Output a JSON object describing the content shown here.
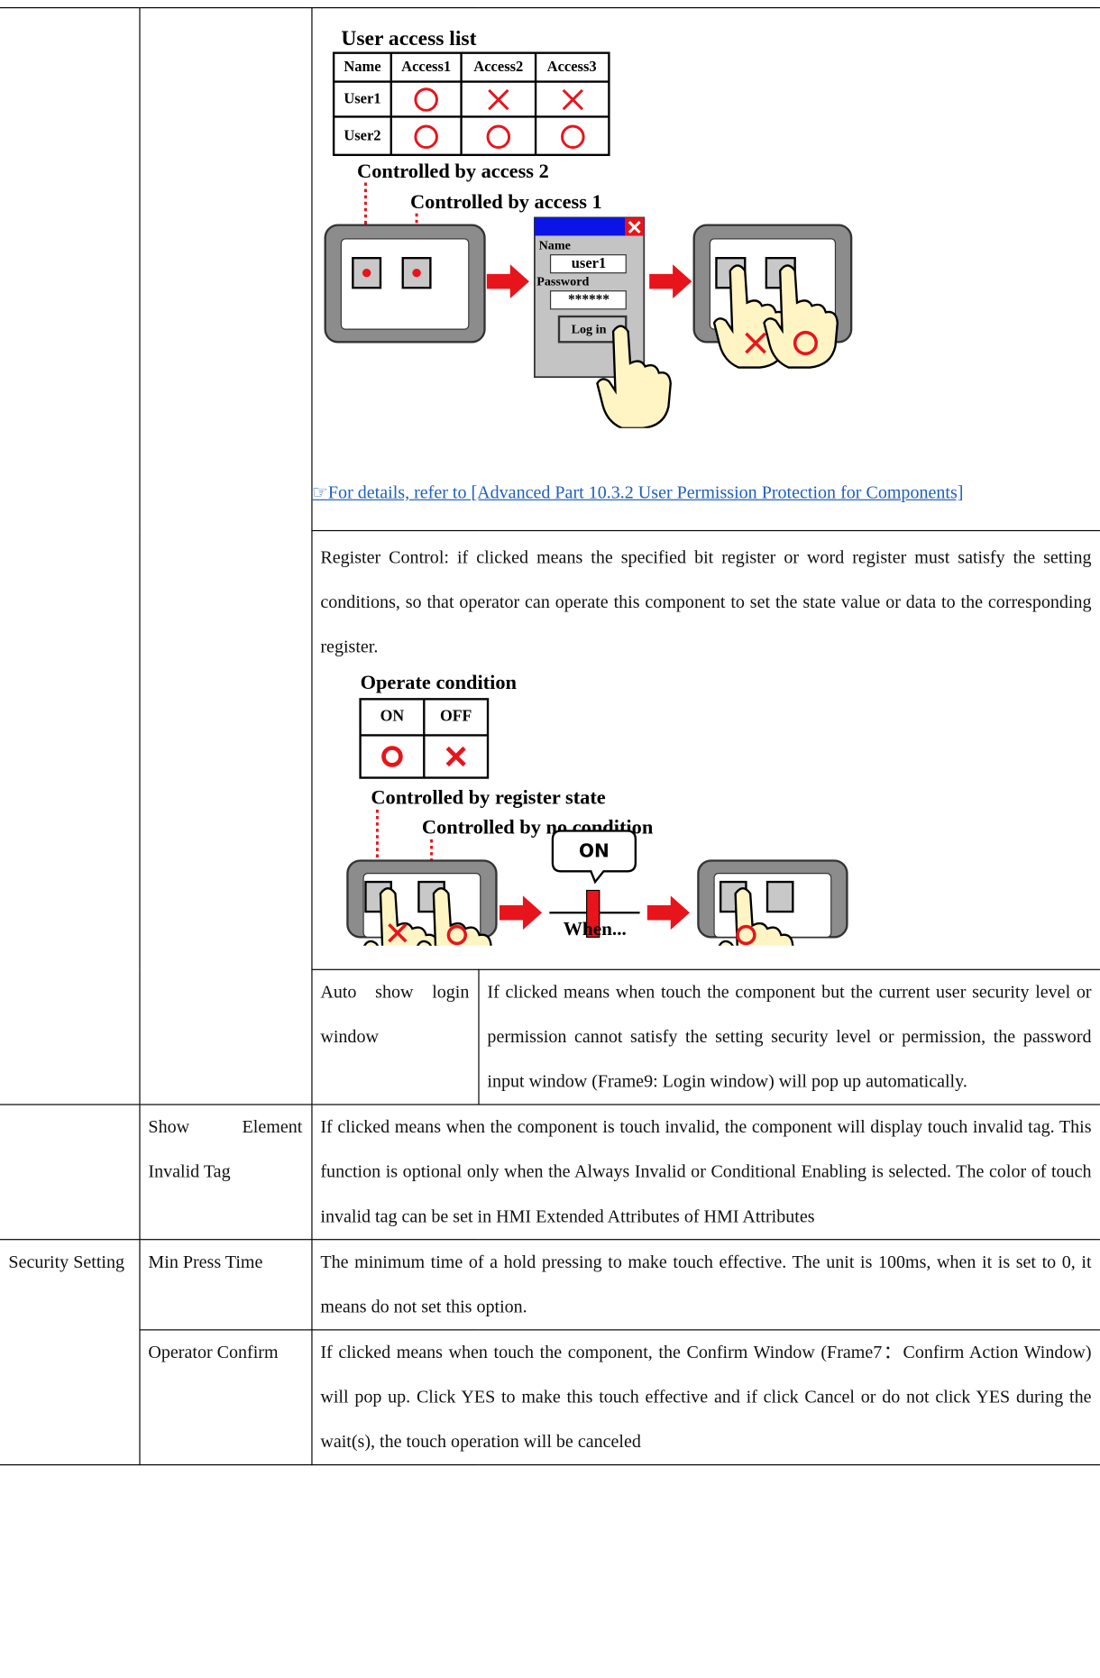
{
  "access_list": {
    "title": "User access list",
    "headers": [
      "Name",
      "Access1",
      "Access2",
      "Access3"
    ],
    "users": [
      "User1",
      "User2"
    ]
  },
  "access_labels": [
    "Controlled by access 2",
    "Controlled by access 1"
  ],
  "login": {
    "name_label": "Name",
    "name": "user1",
    "password_label": "Password",
    "password": "******",
    "button": "Log in"
  },
  "link": "☞For details, refer to [Advanced Part 10.3.2 User Permission Protection for Components]",
  "register_control": "Register Control: if clicked means the specified bit register or word register must satisfy the setting conditions, so that operator can operate this component to set the state value or data to the corresponding register.",
  "condition": {
    "title": "Operate condition",
    "headers": [
      "ON",
      "OFF"
    ],
    "labels": [
      "Controlled by register state",
      "Controlled by no condition"
    ],
    "bubble": "ON",
    "caption": "When..."
  },
  "rows": [
    {
      "item": "Auto show login window",
      "text": "If clicked means when touch the component but the current user security level or permission cannot satisfy the setting security level or permission, the password input window (Frame9: Login window) will pop up automatically."
    },
    {
      "item": "Show Element Invalid Tag",
      "text": "If clicked means when the component is touch invalid, the component will display touch invalid tag. This function is optional only when the Always Invalid or Conditional Enabling is selected. The color of touch invalid tag can be set in HMI Extended Attributes of HMI Attributes"
    },
    {
      "group": "Security Setting",
      "item": "Min Press Time",
      "text": "The minimum time of a hold pressing to make touch effective. The unit is 100ms, when it is set to 0, it means do not set this option."
    },
    {
      "item": "Operator Confirm",
      "text": "If clicked means when touch the component, the Confirm Window (Frame7：Confirm Action Window) will pop up. Click YES to make this touch effective and if click Cancel or do not click YES during the wait(s), the touch operation will be canceled"
    }
  ]
}
